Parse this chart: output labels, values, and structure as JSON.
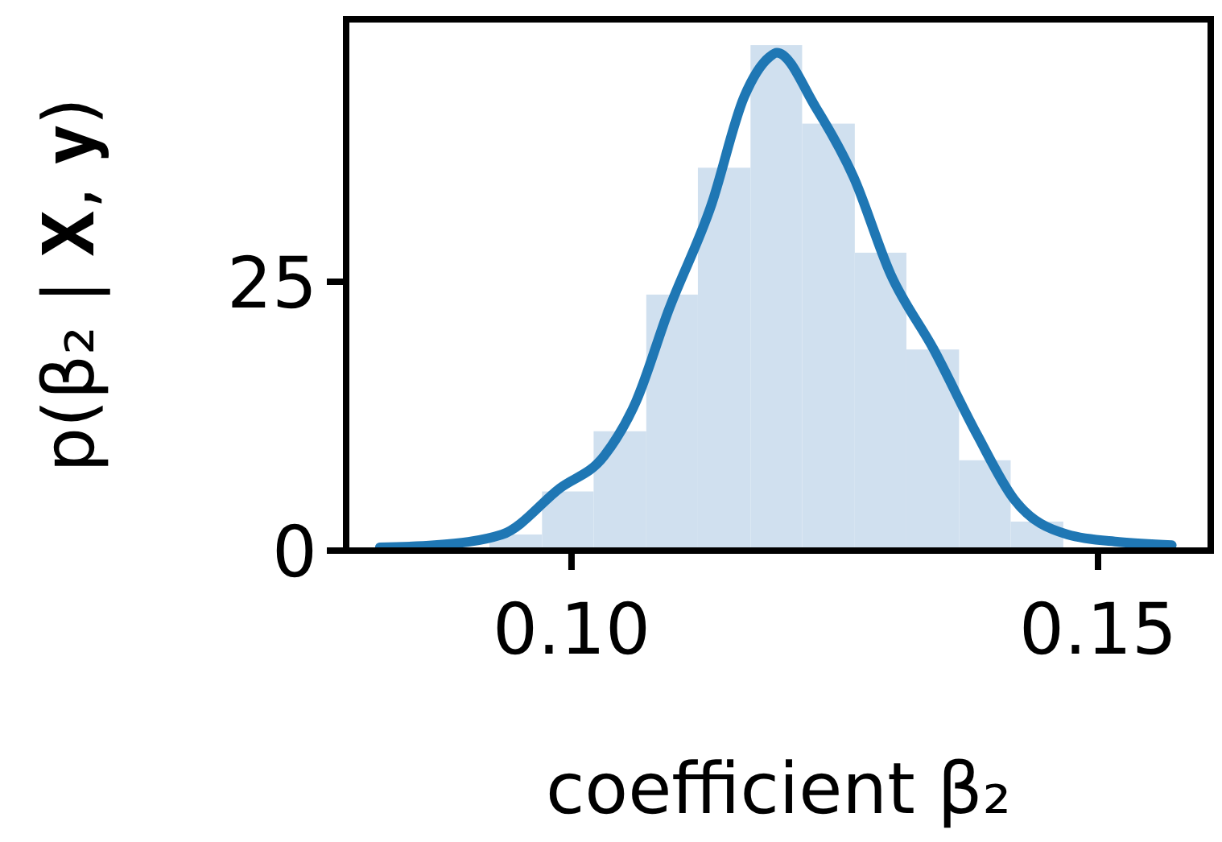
{
  "chart_data": {
    "type": "histogram",
    "xlabel": "coefficient β₂",
    "ylabel": "p(β₂ | 𝐗, 𝐲)",
    "xlim": [
      0.0786,
      0.1607
    ],
    "ylim": [
      0,
      49.4
    ],
    "xticks": [
      {
        "value": 0.1,
        "label": "0.10"
      },
      {
        "value": 0.15,
        "label": "0.15"
      }
    ],
    "yticks": [
      0,
      25
    ],
    "series": [
      {
        "color": "#d0e0ef",
        "bins": [
          0.0922,
          0.0972,
          0.1021,
          0.1071,
          0.112,
          0.117,
          0.1219,
          0.1269,
          0.1318,
          0.1368,
          0.1417,
          0.1467
        ],
        "values": [
          1.5,
          5.5,
          11.1,
          23.8,
          35.6,
          47,
          39.7,
          27.7,
          18.7,
          8.4,
          2.7
        ]
      },
      {
        "type": "line",
        "color": "#1f77b4",
        "x": [
          0.0818,
          0.087,
          0.0934,
          0.0989,
          0.1031,
          0.1061,
          0.1092,
          0.1133,
          0.1164,
          0.1188,
          0.1195,
          0.1232,
          0.1268,
          0.1303,
          0.1344,
          0.1385,
          0.142,
          0.1471,
          0.152,
          0.157
        ],
        "values": [
          0.3,
          0.5,
          1.5,
          5.8,
          8.8,
          13.8,
          22.3,
          32.2,
          42.2,
          45.9,
          46.3,
          41.2,
          34.7,
          25.7,
          18.7,
          10.8,
          4.8,
          1.5,
          0.8,
          0.5
        ]
      }
    ]
  }
}
